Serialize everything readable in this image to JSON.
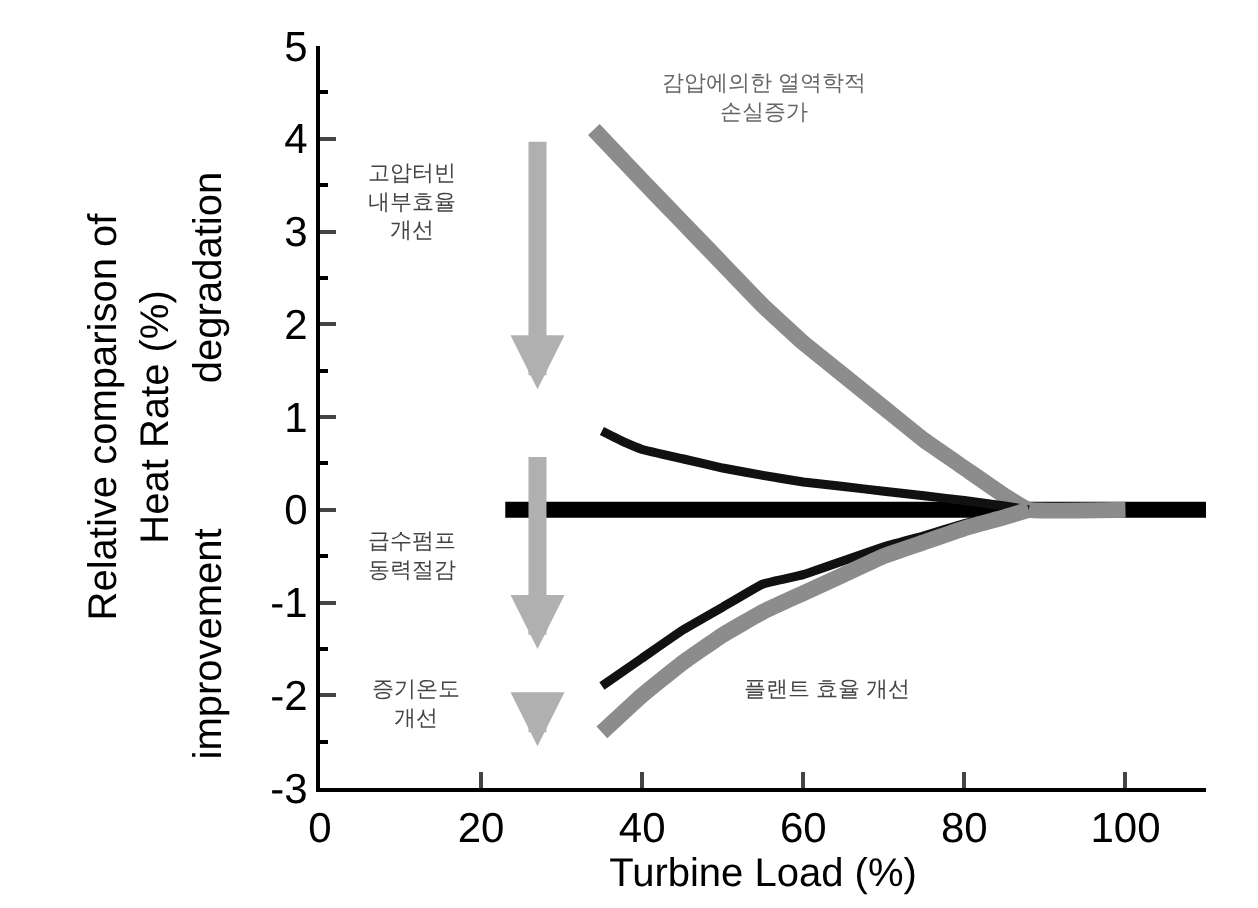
{
  "chart_data": {
    "type": "line",
    "xlabel": "Turbine Load (%)",
    "ylabel": "Relative comparison of\nHeat Rate (%)",
    "xlim": [
      0,
      110
    ],
    "xticks": [
      0,
      20,
      40,
      60,
      80,
      100
    ],
    "ylim": [
      -3,
      5
    ],
    "yticks": [
      -3,
      -2,
      -1,
      0,
      1,
      2,
      3,
      4,
      5
    ],
    "marker": "none",
    "line_style": "solid",
    "series": [
      {
        "color": "#000000",
        "x": [
          23,
          110
        ],
        "values": [
          0,
          0
        ]
      },
      {
        "color": "#8c8c8c",
        "x": [
          34,
          40,
          45,
          50,
          55,
          60,
          65,
          70,
          75,
          80,
          85,
          88,
          100
        ],
        "values": [
          4.1,
          3.55,
          3.1,
          2.65,
          2.2,
          1.8,
          1.45,
          1.1,
          0.75,
          0.45,
          0.15,
          0,
          0
        ]
      },
      {
        "color": "#111111",
        "x": [
          35,
          38,
          40,
          45,
          50,
          55,
          60,
          65,
          70,
          75,
          80,
          85,
          88
        ],
        "values": [
          0.85,
          0.72,
          0.65,
          0.55,
          0.45,
          0.37,
          0.3,
          0.25,
          0.2,
          0.15,
          0.1,
          0.04,
          0
        ]
      },
      {
        "color": "#111111",
        "x": [
          35,
          40,
          45,
          50,
          55,
          60,
          65,
          70,
          75,
          80,
          85,
          88
        ],
        "values": [
          -1.9,
          -1.6,
          -1.3,
          -1.05,
          -0.8,
          -0.7,
          -0.55,
          -0.4,
          -0.28,
          -0.15,
          -0.05,
          0
        ]
      },
      {
        "color": "#8c8c8c",
        "x": [
          35,
          40,
          45,
          50,
          55,
          60,
          65,
          70,
          75,
          80,
          85,
          88
        ],
        "values": [
          -2.4,
          -2.0,
          -1.65,
          -1.35,
          -1.1,
          -0.9,
          -0.7,
          -0.5,
          -0.35,
          -0.2,
          -0.08,
          0
        ]
      }
    ],
    "annotations": [
      "degradation",
      "improvement",
      "감압에의한 열역학적\n손실증가",
      "고압터빈\n내부효율\n개선",
      "급수펌프\n동력절감",
      "증기온도\n개선",
      "플랜트 효율 개선"
    ]
  }
}
